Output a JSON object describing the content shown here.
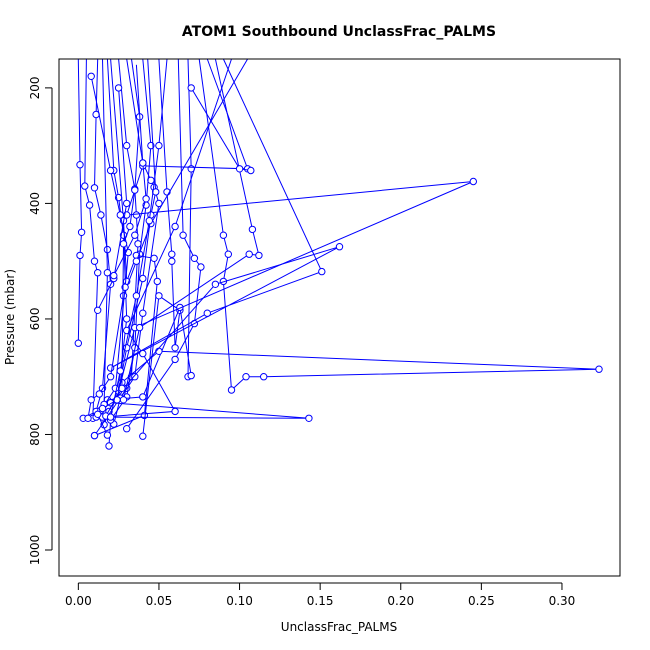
{
  "chart_data": {
    "type": "line",
    "title": "ATOM1 Southbound UnclassFrac_PALMS",
    "xlabel": "UnclassFrac_PALMS",
    "ylabel": "Pressure (mbar)",
    "xlim": [
      -0.012,
      0.336
    ],
    "ylim": [
      1045,
      150
    ],
    "y_reversed": true,
    "x_ticks": [
      0.0,
      0.05,
      0.1,
      0.15,
      0.2,
      0.25,
      0.3
    ],
    "x_tick_labels": [
      "0.00",
      "0.05",
      "0.10",
      "0.15",
      "0.20",
      "0.25",
      "0.30"
    ],
    "y_ticks": [
      200,
      400,
      600,
      800,
      1000
    ],
    "y_tick_labels": [
      "200",
      "400",
      "600",
      "800",
      "1000"
    ],
    "series_color": "#0000ff",
    "marker": "open-circle",
    "series": [
      {
        "points": [
          [
            0.0,
            150
          ],
          [
            0.001,
            333
          ],
          [
            0.002,
            450
          ],
          [
            0.001,
            490
          ],
          [
            0.0,
            642
          ]
        ]
      },
      {
        "points": [
          [
            0.005,
            150
          ],
          [
            0.004,
            370
          ],
          [
            0.007,
            403
          ],
          [
            0.01,
            500
          ],
          [
            0.012,
            520
          ],
          [
            0.009,
            772
          ]
        ]
      },
      {
        "points": [
          [
            0.012,
            150
          ],
          [
            0.011,
            246
          ],
          [
            0.01,
            373
          ],
          [
            0.014,
            420
          ],
          [
            0.018,
            480
          ],
          [
            0.02,
            540
          ],
          [
            0.015,
            720
          ],
          [
            0.011,
            760
          ],
          [
            0.003,
            772
          ]
        ]
      },
      {
        "points": [
          [
            0.018,
            150
          ],
          [
            0.022,
            343
          ],
          [
            0.025,
            390
          ],
          [
            0.028,
            455
          ],
          [
            0.03,
            600
          ],
          [
            0.025,
            720
          ],
          [
            0.019,
            760
          ],
          [
            0.016,
            783
          ]
        ]
      },
      {
        "points": [
          [
            0.025,
            150
          ],
          [
            0.03,
            300
          ],
          [
            0.035,
            375
          ],
          [
            0.036,
            420
          ],
          [
            0.037,
            470
          ],
          [
            0.033,
            700
          ],
          [
            0.03,
            720
          ],
          [
            0.01,
            802
          ]
        ]
      },
      {
        "points": [
          [
            0.03,
            150
          ],
          [
            0.04,
            330
          ],
          [
            0.045,
            360
          ],
          [
            0.047,
            372
          ],
          [
            0.05,
            400
          ],
          [
            0.04,
            590
          ],
          [
            0.035,
            700
          ],
          [
            0.026,
            737
          ],
          [
            0.022,
            782
          ]
        ]
      },
      {
        "points": [
          [
            0.04,
            150
          ],
          [
            0.045,
            300
          ],
          [
            0.042,
            403
          ],
          [
            0.038,
            488
          ],
          [
            0.035,
            650
          ],
          [
            0.03,
            735
          ],
          [
            0.02,
            775
          ],
          [
            0.019,
            820
          ]
        ]
      },
      {
        "points": [
          [
            0.02,
            150
          ],
          [
            0.028,
            430
          ],
          [
            0.03,
            535
          ],
          [
            0.036,
            490
          ],
          [
            0.047,
            495
          ],
          [
            0.049,
            535
          ],
          [
            0.041,
            767
          ],
          [
            0.01,
            802
          ]
        ]
      },
      {
        "points": [
          [
            0.05,
            150
          ],
          [
            0.055,
            380
          ],
          [
            0.058,
            488
          ],
          [
            0.058,
            500
          ],
          [
            0.06,
            650
          ],
          [
            0.063,
            585
          ],
          [
            0.05,
            560
          ],
          [
            0.04,
            803
          ]
        ]
      },
      {
        "points": [
          [
            0.062,
            150
          ],
          [
            0.065,
            455
          ],
          [
            0.072,
            495
          ],
          [
            0.076,
            510
          ],
          [
            0.072,
            608
          ],
          [
            0.06,
            670
          ],
          [
            0.03,
            790
          ]
        ]
      },
      {
        "points": [
          [
            0.068,
            150
          ],
          [
            0.07,
            340
          ],
          [
            0.068,
            700
          ],
          [
            0.07,
            698
          ],
          [
            0.063,
            580
          ],
          [
            0.04,
            735
          ],
          [
            0.018,
            740
          ]
        ]
      },
      {
        "points": [
          [
            0.075,
            150
          ],
          [
            0.09,
            455
          ],
          [
            0.093,
            488
          ],
          [
            0.09,
            535
          ],
          [
            0.095,
            723
          ],
          [
            0.104,
            700
          ],
          [
            0.115,
            700
          ],
          [
            0.323,
            687
          ],
          [
            0.05,
            656
          ],
          [
            0.027,
            710
          ]
        ]
      },
      {
        "points": [
          [
            0.08,
            150
          ],
          [
            0.105,
            340
          ],
          [
            0.04,
            335
          ],
          [
            0.03,
            420
          ],
          [
            0.245,
            362
          ],
          [
            0.035,
            615
          ],
          [
            0.025,
            725
          ]
        ]
      },
      {
        "points": [
          [
            0.085,
            150
          ],
          [
            0.108,
            445
          ],
          [
            0.112,
            490
          ],
          [
            0.106,
            488
          ],
          [
            0.038,
            615
          ],
          [
            0.028,
            740
          ]
        ]
      },
      {
        "points": [
          [
            0.09,
            150
          ],
          [
            0.151,
            518
          ],
          [
            0.08,
            590
          ],
          [
            0.02,
            685
          ],
          [
            0.162,
            475
          ],
          [
            0.085,
            540
          ],
          [
            0.02,
            745
          ],
          [
            0.143,
            772
          ],
          [
            0.011,
            770
          ]
        ]
      },
      {
        "points": [
          [
            0.095,
            150
          ],
          [
            0.06,
            440
          ],
          [
            0.03,
            620
          ],
          [
            0.04,
            660
          ],
          [
            0.06,
            760
          ],
          [
            0.015,
            770
          ]
        ]
      },
      {
        "points": [
          [
            0.105,
            150
          ],
          [
            0.045,
            435
          ],
          [
            0.036,
            500
          ],
          [
            0.028,
            560
          ],
          [
            0.02,
            700
          ],
          [
            0.013,
            730
          ],
          [
            0.008,
            740
          ],
          [
            0.006,
            772
          ]
        ]
      },
      {
        "points": [
          [
            0.07,
            200
          ],
          [
            0.1,
            340
          ],
          [
            0.107,
            343
          ]
        ]
      },
      {
        "points": [
          [
            0.008,
            180
          ],
          [
            0.02,
            343
          ],
          [
            0.026,
            420
          ],
          [
            0.031,
            485
          ],
          [
            0.029,
            545
          ],
          [
            0.023,
            720
          ],
          [
            0.014,
            758
          ]
        ]
      },
      {
        "points": [
          [
            0.015,
            150
          ],
          [
            0.018,
            520
          ],
          [
            0.016,
            748
          ],
          [
            0.012,
            765
          ],
          [
            0.018,
            801
          ]
        ]
      },
      {
        "points": [
          [
            0.033,
            150
          ],
          [
            0.038,
            250
          ],
          [
            0.035,
            377
          ],
          [
            0.032,
            440
          ],
          [
            0.028,
            470
          ],
          [
            0.027,
            720
          ],
          [
            0.017,
            768
          ]
        ]
      },
      {
        "points": [
          [
            0.043,
            150
          ],
          [
            0.048,
            380
          ],
          [
            0.045,
            420
          ],
          [
            0.04,
            530
          ],
          [
            0.03,
            650
          ],
          [
            0.024,
            740
          ],
          [
            0.015,
            755
          ]
        ]
      },
      {
        "points": [
          [
            0.055,
            150
          ],
          [
            0.05,
            300
          ],
          [
            0.044,
            430
          ],
          [
            0.036,
            560
          ],
          [
            0.026,
            690
          ],
          [
            0.02,
            770
          ]
        ]
      },
      {
        "points": [
          [
            0.025,
            200
          ],
          [
            0.03,
            400
          ],
          [
            0.022,
            530
          ],
          [
            0.012,
            585
          ]
        ]
      },
      {
        "points": [
          [
            0.036,
            160
          ],
          [
            0.04,
            330
          ],
          [
            0.042,
            392
          ],
          [
            0.035,
            455
          ],
          [
            0.022,
            525
          ]
        ]
      }
    ]
  }
}
